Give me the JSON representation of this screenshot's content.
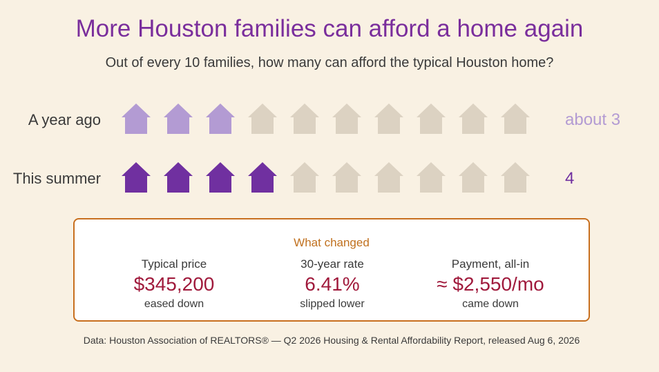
{
  "title": "More Houston families can afford a home again",
  "subtitle": "Out of every 10 families, how many can afford the typical Houston home?",
  "chart_data": {
    "type": "pictograph",
    "total_icons": 10,
    "icon": "house-icon",
    "rows": [
      {
        "label": "A year ago",
        "value": 3,
        "value_label": "about 3",
        "color": "#b39bd3"
      },
      {
        "label": "This summer",
        "value": 4,
        "value_label": "4",
        "color": "#7030a0"
      }
    ],
    "empty_color": "#dcd2c2"
  },
  "panel": {
    "title": "What changed",
    "stats": [
      {
        "label": "Typical price",
        "value": "$345,200",
        "note": "eased down"
      },
      {
        "label": "30-year rate",
        "value": "6.41%",
        "note": "slipped lower"
      },
      {
        "label": "Payment, all-in",
        "value": "≈ $2,550/mo",
        "note": "came down"
      }
    ]
  },
  "source": "Data: Houston Association of REALTORS® — Q2 2026 Housing & Rental Affordability Report, released Aug 6, 2026"
}
